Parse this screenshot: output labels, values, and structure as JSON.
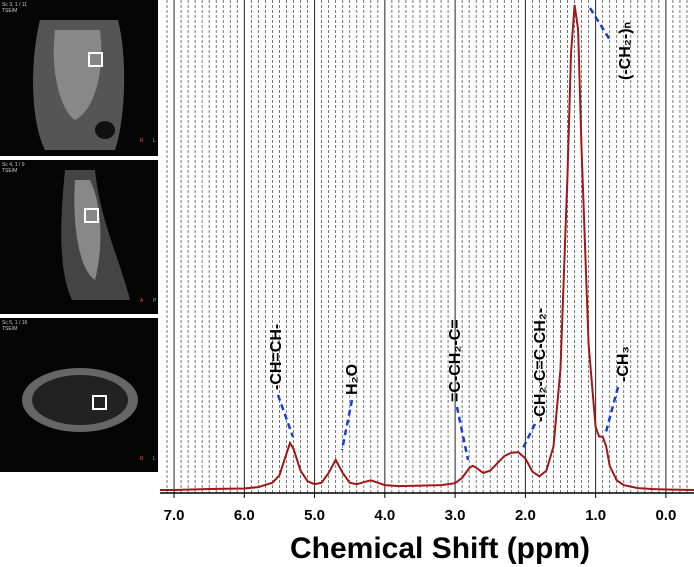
{
  "chart_data": {
    "type": "line",
    "xlabel": "Chemical Shift (ppm)",
    "color": "#a01818",
    "x": [
      7.2,
      7.0,
      6.5,
      6.0,
      5.8,
      5.6,
      5.5,
      5.4,
      5.35,
      5.3,
      5.2,
      5.1,
      5.0,
      4.9,
      4.8,
      4.7,
      4.6,
      4.5,
      4.4,
      4.3,
      4.2,
      4.1,
      4.0,
      3.8,
      3.5,
      3.2,
      3.0,
      2.9,
      2.8,
      2.75,
      2.7,
      2.6,
      2.5,
      2.4,
      2.3,
      2.2,
      2.1,
      2.0,
      1.9,
      1.8,
      1.7,
      1.6,
      1.5,
      1.4,
      1.35,
      1.3,
      1.25,
      1.2,
      1.1,
      1.0,
      0.95,
      0.9,
      0.85,
      0.8,
      0.7,
      0.6,
      0.4,
      0.2,
      0.0,
      -0.4
    ],
    "values": [
      0,
      0,
      0.2,
      0.3,
      0.6,
      1.5,
      3,
      7.5,
      9.7,
      8.5,
      4,
      1.8,
      1.2,
      1.5,
      3.5,
      6.2,
      3.5,
      1.5,
      1.2,
      1.6,
      2,
      1.5,
      1,
      0.8,
      0.9,
      1.0,
      1.4,
      2.5,
      4.5,
      5,
      4.6,
      3.5,
      4,
      5.5,
      7,
      7.7,
      7.8,
      6.5,
      3.8,
      2.8,
      4,
      9,
      25,
      65,
      90,
      100,
      95,
      70,
      30,
      13,
      11,
      11,
      9,
      5,
      2,
      1,
      0.4,
      0.2,
      0.1,
      0
    ],
    "xlim": [
      7.2,
      -0.4
    ],
    "ylim": [
      0,
      100
    ],
    "xticks": [
      {
        "value": 7,
        "label": "7.0"
      },
      {
        "value": 6,
        "label": "6.0"
      },
      {
        "value": 5,
        "label": "5.0"
      },
      {
        "value": 4,
        "label": "4.0"
      },
      {
        "value": 3,
        "label": "3.0"
      },
      {
        "value": 2,
        "label": "2.0"
      },
      {
        "value": 1,
        "label": "1.0"
      },
      {
        "value": 0,
        "label": "0.0"
      }
    ],
    "minor_xticks": [
      7.1,
      6.9,
      6.8,
      6.7,
      6.6,
      6.5,
      6.4,
      6.3,
      6.2,
      6.1,
      5.9,
      5.8,
      5.7,
      5.6,
      5.5,
      5.4,
      5.3,
      5.2,
      5.1,
      4.9,
      4.8,
      4.7,
      4.6,
      4.5,
      4.4,
      4.3,
      4.2,
      4.1,
      3.9,
      3.8,
      3.7,
      3.6,
      3.5,
      3.4,
      3.3,
      3.2,
      3.1,
      2.9,
      2.8,
      2.7,
      2.6,
      2.5,
      2.4,
      2.3,
      2.2,
      2.1,
      1.9,
      1.8,
      1.7,
      1.6,
      1.5,
      1.4,
      1.3,
      1.2,
      1.1,
      0.9,
      0.8,
      0.7,
      0.6,
      0.5,
      0.4,
      0.3,
      0.2,
      0.1,
      -0.1,
      -0.2,
      -0.3
    ],
    "grid": true,
    "annotations": [
      "-CH=CH-",
      "H₂O",
      "=C-CH₂-C=",
      "-CH₂-C=C-CH₂-",
      "-CH₃",
      "(-CH₂-)ₙ"
    ]
  },
  "images": [
    {
      "lines": [
        "Sc 3, 1 / 11",
        "TSE/M"
      ],
      "orient": [
        "R",
        "L"
      ]
    },
    {
      "lines": [
        "Sc 4, 1 / 9",
        "TSE/M"
      ],
      "orient": [
        "A",
        "P"
      ]
    },
    {
      "lines": [
        "Sc 5, 1 / 16",
        "TSE/M"
      ],
      "orient": [
        "R",
        "L"
      ]
    }
  ]
}
